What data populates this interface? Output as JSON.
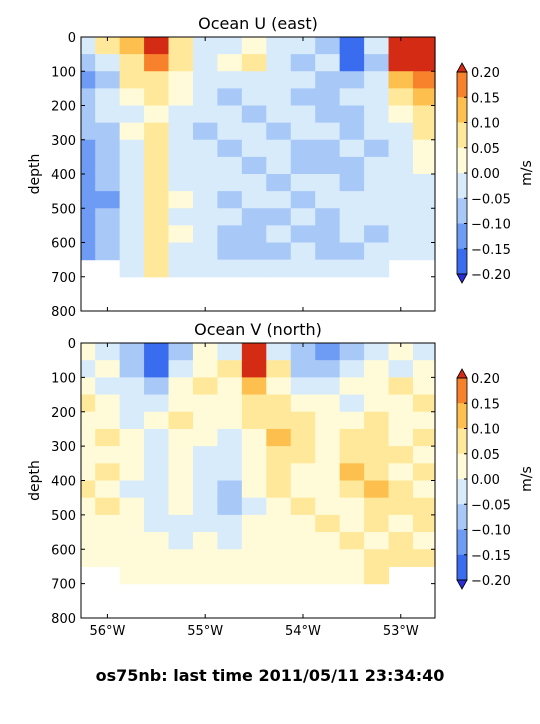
{
  "figure_title": "os75nb: last time 2011/05/11 23:34:40",
  "palette": {
    "levels": [
      -0.25,
      -0.2,
      -0.15,
      -0.1,
      -0.05,
      0.0,
      0.05,
      0.1,
      0.15,
      0.2,
      0.25
    ],
    "colors": [
      "#2a2ed8",
      "#3a6cf0",
      "#6e9cf5",
      "#a8c8f8",
      "#d8ebfb",
      "#fffbd8",
      "#ffe89a",
      "#fdc04e",
      "#f8822c",
      "#d42c14"
    ]
  },
  "chart_data": [
    {
      "type": "heatmap",
      "title": "Ocean U (east)",
      "ylabel": "depth",
      "xlabel": "",
      "xlim": [
        -56.27,
        -52.65
      ],
      "ylim": [
        800,
        0
      ],
      "x_ticks": [
        -56,
        -55,
        -54,
        -53
      ],
      "x_tick_labels": [],
      "y_ticks": [
        0,
        100,
        200,
        300,
        400,
        500,
        600,
        700,
        800
      ],
      "y_tick_labels": [
        "0",
        "100",
        "200",
        "300",
        "400",
        "500",
        "600",
        "700",
        "800"
      ],
      "colorbar": {
        "label": "m/s",
        "ticks": [
          "0.20",
          "0.15",
          "0.10",
          "0.05",
          "0.00",
          "−0.05",
          "−0.10",
          "−0.15",
          "−0.20"
        ],
        "extend": "both"
      },
      "grid": false,
      "x": [
        -56.25,
        -56.0,
        -55.75,
        -55.5,
        -55.25,
        -55.0,
        -54.75,
        -54.5,
        -54.25,
        -54.0,
        -53.75,
        -53.5,
        -53.25,
        -53.0,
        -52.75
      ],
      "depth": [
        25,
        75,
        125,
        175,
        225,
        275,
        325,
        375,
        425,
        475,
        525,
        575,
        625,
        675
      ],
      "z": [
        [
          -0.05,
          0.05,
          0.1,
          0.2,
          0.05,
          -0.05,
          -0.05,
          0.0,
          -0.05,
          -0.05,
          -0.1,
          -0.2,
          -0.05,
          0.25,
          0.25
        ],
        [
          -0.1,
          -0.05,
          0.05,
          0.15,
          0.05,
          -0.05,
          0.0,
          0.05,
          -0.05,
          -0.1,
          -0.05,
          -0.2,
          -0.1,
          0.2,
          0.25
        ],
        [
          -0.15,
          -0.1,
          0.05,
          0.05,
          0.0,
          -0.05,
          -0.05,
          -0.05,
          -0.05,
          -0.05,
          -0.1,
          -0.1,
          -0.05,
          0.1,
          0.15
        ],
        [
          -0.1,
          -0.05,
          0.0,
          0.05,
          0.0,
          -0.05,
          -0.1,
          -0.05,
          -0.05,
          -0.1,
          -0.1,
          -0.05,
          -0.05,
          0.05,
          0.1
        ],
        [
          -0.1,
          -0.05,
          -0.05,
          0.0,
          -0.05,
          -0.05,
          -0.05,
          -0.1,
          -0.05,
          -0.05,
          -0.1,
          -0.1,
          -0.05,
          0.0,
          0.05
        ],
        [
          -0.1,
          -0.1,
          0.0,
          0.05,
          -0.05,
          -0.1,
          -0.05,
          -0.05,
          -0.1,
          -0.05,
          -0.05,
          -0.1,
          -0.05,
          -0.05,
          0.05
        ],
        [
          -0.15,
          -0.1,
          -0.05,
          0.05,
          -0.05,
          -0.05,
          -0.1,
          -0.05,
          -0.05,
          -0.1,
          -0.1,
          -0.05,
          -0.1,
          -0.05,
          0.0
        ],
        [
          -0.15,
          -0.1,
          -0.05,
          0.05,
          -0.05,
          -0.05,
          -0.05,
          -0.1,
          -0.05,
          -0.1,
          -0.1,
          -0.1,
          -0.05,
          -0.05,
          0.0
        ],
        [
          -0.15,
          -0.1,
          -0.05,
          0.05,
          -0.05,
          -0.05,
          -0.05,
          -0.05,
          -0.1,
          -0.05,
          -0.05,
          -0.1,
          -0.05,
          -0.05,
          -0.05
        ],
        [
          -0.15,
          -0.15,
          -0.05,
          0.05,
          0.0,
          -0.05,
          -0.1,
          -0.05,
          -0.05,
          -0.1,
          -0.05,
          -0.05,
          -0.05,
          -0.05,
          -0.05
        ],
        [
          -0.15,
          -0.1,
          -0.05,
          0.05,
          -0.05,
          -0.05,
          -0.05,
          -0.1,
          -0.1,
          -0.05,
          -0.1,
          -0.05,
          -0.05,
          -0.05,
          -0.05
        ],
        [
          -0.15,
          -0.1,
          -0.05,
          0.05,
          0.0,
          -0.05,
          -0.1,
          -0.1,
          -0.05,
          -0.1,
          -0.1,
          -0.05,
          -0.1,
          -0.05,
          -0.05
        ],
        [
          -0.15,
          -0.1,
          -0.05,
          0.05,
          -0.05,
          -0.05,
          -0.1,
          -0.1,
          -0.1,
          -0.05,
          -0.1,
          -0.1,
          -0.05,
          -0.05,
          -0.05
        ],
        [
          null,
          null,
          -0.05,
          0.05,
          -0.05,
          -0.05,
          -0.05,
          -0.05,
          -0.05,
          -0.05,
          -0.05,
          -0.05,
          -0.05,
          null,
          null
        ]
      ]
    },
    {
      "type": "heatmap",
      "title": "Ocean V (north)",
      "ylabel": "depth",
      "xlabel": "",
      "xlim": [
        -56.27,
        -52.65
      ],
      "ylim": [
        800,
        0
      ],
      "x_ticks": [
        -56,
        -55,
        -54,
        -53
      ],
      "x_tick_labels": [
        "56°W",
        "55°W",
        "54°W",
        "53°W"
      ],
      "y_ticks": [
        0,
        100,
        200,
        300,
        400,
        500,
        600,
        700,
        800
      ],
      "y_tick_labels": [
        "0",
        "100",
        "200",
        "300",
        "400",
        "500",
        "600",
        "700",
        "800"
      ],
      "colorbar": {
        "label": "m/s",
        "ticks": [
          "0.20",
          "0.15",
          "0.10",
          "0.05",
          "0.00",
          "−0.05",
          "−0.10",
          "−0.15",
          "−0.20"
        ],
        "extend": "both"
      },
      "grid": false,
      "x": [
        -56.25,
        -56.0,
        -55.75,
        -55.5,
        -55.25,
        -55.0,
        -54.75,
        -54.5,
        -54.25,
        -54.0,
        -53.75,
        -53.5,
        -53.25,
        -53.0,
        -52.75
      ],
      "depth": [
        25,
        75,
        125,
        175,
        225,
        275,
        325,
        375,
        425,
        475,
        525,
        575,
        625,
        675
      ],
      "z": [
        [
          0.0,
          -0.05,
          -0.1,
          -0.2,
          -0.1,
          0.0,
          -0.05,
          0.25,
          -0.05,
          -0.1,
          -0.15,
          -0.1,
          -0.05,
          0.0,
          -0.05
        ],
        [
          -0.05,
          0.0,
          -0.1,
          -0.2,
          -0.05,
          0.0,
          0.05,
          0.25,
          0.05,
          -0.1,
          -0.1,
          -0.05,
          0.0,
          -0.05,
          0.0
        ],
        [
          0.0,
          -0.05,
          -0.05,
          -0.1,
          0.0,
          0.05,
          0.0,
          0.1,
          0.0,
          -0.05,
          -0.05,
          0.0,
          0.0,
          0.05,
          0.0
        ],
        [
          0.05,
          0.0,
          -0.05,
          -0.05,
          0.0,
          0.0,
          0.0,
          0.05,
          0.05,
          0.0,
          0.0,
          -0.05,
          0.0,
          0.0,
          0.05
        ],
        [
          0.0,
          0.0,
          -0.05,
          0.0,
          0.05,
          0.0,
          0.0,
          0.05,
          0.05,
          0.05,
          0.0,
          0.0,
          0.05,
          0.0,
          0.0
        ],
        [
          0.0,
          0.05,
          0.0,
          -0.05,
          0.0,
          0.0,
          -0.05,
          0.0,
          0.1,
          0.05,
          0.0,
          0.05,
          0.05,
          0.0,
          0.05
        ],
        [
          0.0,
          0.0,
          0.0,
          -0.05,
          0.0,
          -0.05,
          -0.05,
          0.0,
          0.05,
          0.05,
          0.0,
          0.05,
          0.05,
          0.05,
          0.0
        ],
        [
          0.0,
          0.05,
          0.0,
          -0.05,
          0.0,
          -0.05,
          -0.05,
          0.0,
          0.05,
          0.0,
          0.0,
          0.1,
          0.05,
          0.0,
          0.05
        ],
        [
          0.05,
          0.0,
          -0.05,
          -0.05,
          0.0,
          -0.05,
          -0.1,
          0.0,
          0.05,
          0.0,
          0.0,
          0.05,
          0.1,
          0.05,
          0.0
        ],
        [
          0.0,
          0.05,
          0.0,
          -0.05,
          0.0,
          -0.05,
          -0.1,
          -0.05,
          0.0,
          0.05,
          0.0,
          0.0,
          0.05,
          0.05,
          0.05
        ],
        [
          0.0,
          0.0,
          0.0,
          -0.05,
          -0.05,
          -0.05,
          -0.05,
          0.0,
          0.0,
          0.0,
          0.05,
          0.0,
          0.05,
          0.0,
          0.05
        ],
        [
          0.0,
          0.0,
          0.0,
          0.0,
          -0.05,
          0.0,
          -0.05,
          0.0,
          0.0,
          0.0,
          0.0,
          0.05,
          0.0,
          0.05,
          0.0
        ],
        [
          0.0,
          0.0,
          0.0,
          0.0,
          0.0,
          0.0,
          0.0,
          0.0,
          0.0,
          0.0,
          0.0,
          0.0,
          0.05,
          0.05,
          0.05
        ],
        [
          null,
          null,
          0.0,
          0.0,
          0.0,
          0.0,
          0.0,
          0.0,
          0.0,
          0.0,
          0.0,
          0.0,
          0.05,
          null,
          null
        ]
      ]
    }
  ]
}
